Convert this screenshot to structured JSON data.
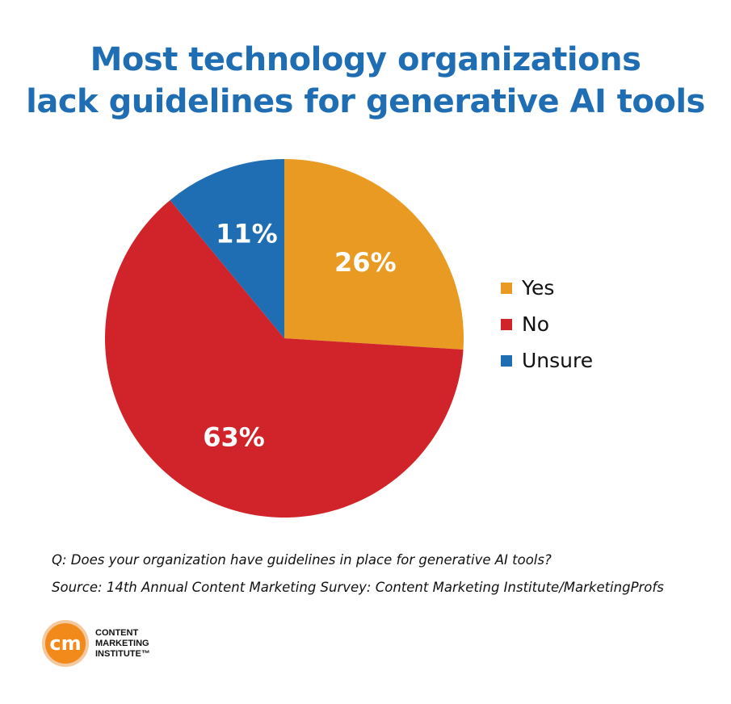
{
  "title": {
    "line1": "Most technology organizations",
    "line2": "lack guidelines for generative AI tools"
  },
  "chart_data": {
    "type": "pie",
    "slices": [
      {
        "label": "Yes",
        "value": 26,
        "value_label": "26%",
        "color": "#e89a22"
      },
      {
        "label": "No",
        "value": 63,
        "value_label": "63%",
        "color": "#d0242a"
      },
      {
        "label": "Unsure",
        "value": 11,
        "value_label": "11%",
        "color": "#1f6db3"
      }
    ],
    "legend_position": "right"
  },
  "footnote": {
    "question": "Q: Does your organization have guidelines in place for generative AI tools?",
    "source": "Source: 14th Annual Content Marketing Survey: Content Marketing Institute/MarketingProfs"
  },
  "logo": {
    "mark": "cm",
    "line1": "CONTENT",
    "line2": "MARKETING",
    "line3": "INSTITUTE™"
  }
}
